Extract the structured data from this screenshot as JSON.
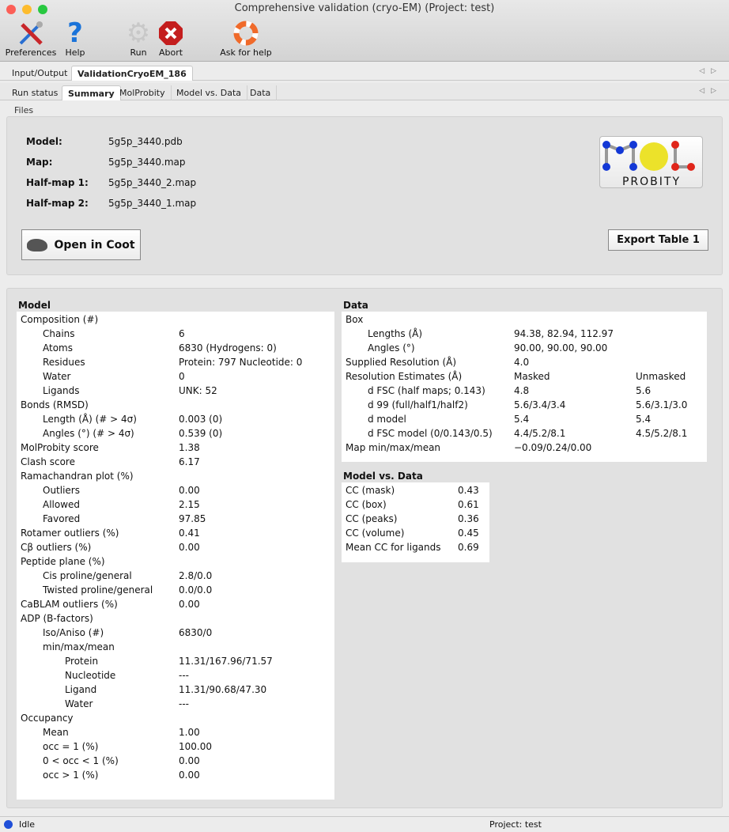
{
  "window": {
    "title": "Comprehensive validation (cryo-EM) (Project: test)"
  },
  "toolbar": {
    "preferences": "Preferences",
    "help": "Help",
    "run": "Run",
    "abort": "Abort",
    "ask_help": "Ask for help"
  },
  "top_tabs": [
    {
      "label": "Input/Output"
    },
    {
      "label": "ValidationCryoEM_186",
      "active": true
    }
  ],
  "sub_tabs": [
    {
      "label": "Run status"
    },
    {
      "label": "Summary",
      "active": true
    },
    {
      "label": "MolProbity"
    },
    {
      "label": "Model vs. Data"
    },
    {
      "label": "Data"
    }
  ],
  "files": {
    "heading": "Files",
    "rows": [
      {
        "label": "Model:",
        "value": "5g5p_3440.pdb"
      },
      {
        "label": "Map:",
        "value": "5g5p_3440.map"
      },
      {
        "label": "Half-map 1:",
        "value": "5g5p_3440_2.map"
      },
      {
        "label": "Half-map 2:",
        "value": "5g5p_3440_1.map"
      }
    ],
    "open_coot": "Open in Coot",
    "export": "Export Table 1",
    "logo_text": "MOL PROBITY"
  },
  "model": {
    "heading": "Model",
    "rows": [
      {
        "l": "Composition (#)",
        "v": "",
        "i": 0
      },
      {
        "l": "Chains",
        "v": "6",
        "i": 1
      },
      {
        "l": "Atoms",
        "v": "6830 (Hydrogens: 0)",
        "i": 1
      },
      {
        "l": "Residues",
        "v": "Protein: 797 Nucleotide: 0",
        "i": 1
      },
      {
        "l": "Water",
        "v": "0",
        "i": 1
      },
      {
        "l": "Ligands",
        "v": "UNK: 52",
        "i": 1
      },
      {
        "l": "Bonds (RMSD)",
        "v": "",
        "i": 0
      },
      {
        "l": "Length (Å) (# > 4σ)",
        "v": "0.003 (0)",
        "i": 1
      },
      {
        "l": "Angles (°) (# > 4σ)",
        "v": "0.539 (0)",
        "i": 1
      },
      {
        "l": "MolProbity score",
        "v": "1.38",
        "i": 0
      },
      {
        "l": "Clash score",
        "v": "6.17",
        "i": 0
      },
      {
        "l": "Ramachandran plot (%)",
        "v": "",
        "i": 0
      },
      {
        "l": "Outliers",
        "v": "0.00",
        "i": 1
      },
      {
        "l": "Allowed",
        "v": "2.15",
        "i": 1
      },
      {
        "l": "Favored",
        "v": "97.85",
        "i": 1
      },
      {
        "l": "Rotamer outliers (%)",
        "v": "0.41",
        "i": 0
      },
      {
        "l": "Cβ outliers (%)",
        "v": "0.00",
        "i": 0
      },
      {
        "l": "Peptide plane (%)",
        "v": "",
        "i": 0
      },
      {
        "l": "Cis proline/general",
        "v": "2.8/0.0",
        "i": 1
      },
      {
        "l": "Twisted proline/general",
        "v": "0.0/0.0",
        "i": 1
      },
      {
        "l": "CaBLAM outliers (%)",
        "v": "0.00",
        "i": 0
      },
      {
        "l": "ADP (B-factors)",
        "v": "",
        "i": 0
      },
      {
        "l": "Iso/Aniso (#)",
        "v": "6830/0",
        "i": 1
      },
      {
        "l": "min/max/mean",
        "v": "",
        "i": 1
      },
      {
        "l": "Protein",
        "v": "11.31/167.96/71.57",
        "i": 2
      },
      {
        "l": "Nucleotide",
        "v": "---",
        "i": 2
      },
      {
        "l": "Ligand",
        "v": "11.31/90.68/47.30",
        "i": 2
      },
      {
        "l": "Water",
        "v": "---",
        "i": 2
      },
      {
        "l": "Occupancy",
        "v": "",
        "i": 0
      },
      {
        "l": "Mean",
        "v": "1.00",
        "i": 1
      },
      {
        "l": "occ = 1 (%)",
        "v": "100.00",
        "i": 1
      },
      {
        "l": "0 < occ < 1 (%)",
        "v": "0.00",
        "i": 1
      },
      {
        "l": "occ > 1 (%)",
        "v": "0.00",
        "i": 1
      }
    ]
  },
  "data": {
    "heading": "Data",
    "rows": [
      {
        "l": "Box",
        "v": "",
        "u": "",
        "i": 0
      },
      {
        "l": "Lengths (Å)",
        "v": "94.38, 82.94, 112.97",
        "u": "",
        "i": 1
      },
      {
        "l": "Angles (°)",
        "v": "90.00, 90.00, 90.00",
        "u": "",
        "i": 1
      },
      {
        "l": "Supplied Resolution (Å)",
        "v": "4.0",
        "u": "",
        "i": 0
      },
      {
        "l": "Resolution Estimates (Å)",
        "v": "Masked",
        "u": "Unmasked",
        "i": 0
      },
      {
        "l": "d FSC (half maps; 0.143)",
        "v": "4.8",
        "u": "5.6",
        "i": 1
      },
      {
        "l": "d 99 (full/half1/half2)",
        "v": "5.6/3.4/3.4",
        "u": "5.6/3.1/3.0",
        "i": 1
      },
      {
        "l": "d model",
        "v": "5.4",
        "u": "5.4",
        "i": 1
      },
      {
        "l": "d FSC model (0/0.143/0.5)",
        "v": "4.4/5.2/8.1",
        "u": "4.5/5.2/8.1",
        "i": 1
      },
      {
        "l": "Map min/max/mean",
        "v": "−0.09/0.24/0.00",
        "u": "",
        "i": 0
      }
    ]
  },
  "mvd": {
    "heading": "Model vs. Data",
    "rows": [
      {
        "l": "CC (mask)",
        "v": "0.43"
      },
      {
        "l": "CC (box)",
        "v": "0.61"
      },
      {
        "l": "CC (peaks)",
        "v": "0.36"
      },
      {
        "l": "CC (volume)",
        "v": "0.45"
      },
      {
        "l": "Mean CC for ligands",
        "v": "0.69"
      }
    ]
  },
  "status": {
    "state": "Idle",
    "project": "Project: test",
    "indicator_color": "#1f4fd8"
  }
}
